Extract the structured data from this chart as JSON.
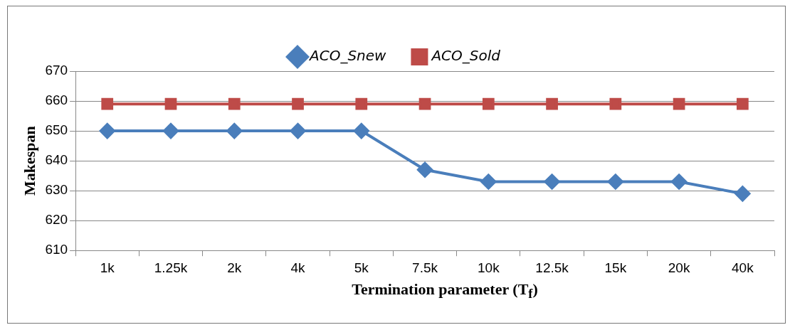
{
  "chart_data": {
    "type": "line",
    "xlabel": "Termination parameter (T$_{f}$)",
    "ylabel": "Makespan",
    "categories": [
      "1k",
      "1.25k",
      "2k",
      "4k",
      "5k",
      "7.5k",
      "10k",
      "12.5k",
      "15k",
      "20k",
      "40k"
    ],
    "series": [
      {
        "name": "ACO_Snew",
        "color": "#4a7ebb",
        "marker": "diamond",
        "values": [
          650,
          650,
          650,
          650,
          650,
          637,
          633,
          633,
          633,
          633,
          629
        ]
      },
      {
        "name": "ACO_Sold",
        "color": "#be4b48",
        "marker": "square",
        "values": [
          659,
          659,
          659,
          659,
          659,
          659,
          659,
          659,
          659,
          659,
          659
        ]
      }
    ],
    "ylim": [
      610,
      670
    ],
    "yticks": [
      610,
      620,
      630,
      640,
      650,
      660,
      670
    ],
    "grid": "y",
    "legend": "top",
    "line_style": "solid"
  }
}
